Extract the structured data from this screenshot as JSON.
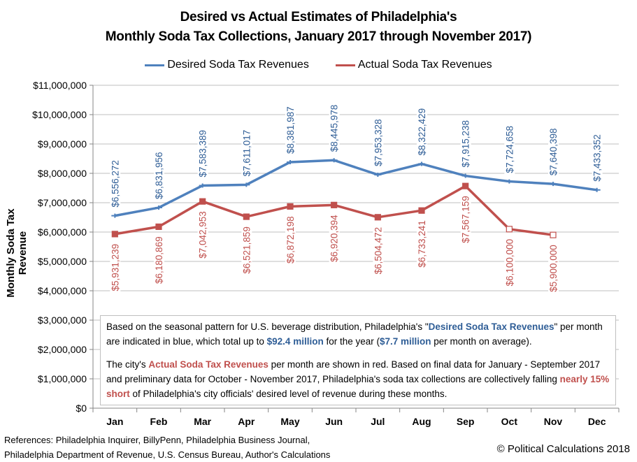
{
  "chart_data": {
    "type": "line",
    "title": [
      "Desired vs Actual Estimates of Philadelphia's",
      "Monthly Soda Tax Collections, January 2017 through November 2017)"
    ],
    "xlabel": "",
    "ylabel": "Monthly Soda Tax Revenue",
    "ylim": [
      0,
      11000000
    ],
    "yticks": [
      0,
      1000000,
      2000000,
      3000000,
      4000000,
      5000000,
      6000000,
      7000000,
      8000000,
      9000000,
      10000000,
      11000000
    ],
    "ytick_labels": [
      "$0",
      "$1,000,000",
      "$2,000,000",
      "$3,000,000",
      "$4,000,000",
      "$5,000,000",
      "$6,000,000",
      "$7,000,000",
      "$8,000,000",
      "$9,000,000",
      "$10,000,000",
      "$11,000,000"
    ],
    "categories": [
      "Jan",
      "Feb",
      "Mar",
      "Apr",
      "May",
      "Jun",
      "Jul",
      "Aug",
      "Sep",
      "Oct",
      "Nov",
      "Dec"
    ],
    "grid": true,
    "legend_position": "top-center",
    "series": [
      {
        "name": "Desired Soda Tax Revenues",
        "color": "#4f81bd",
        "label_color": "#2e5d96",
        "values": [
          6556272,
          6831956,
          7583389,
          7611017,
          8381987,
          8445978,
          7953328,
          8322429,
          7915238,
          7724658,
          7640398,
          7433352
        ],
        "labels": [
          "$6,556,272",
          "$6,831,956",
          "$7,583,389",
          "$7,611,017",
          "$8,381,987",
          "$8,445,978",
          "$7,953,328",
          "$8,322,429",
          "$7,915,238",
          "$7,724,658",
          "$7,640,398",
          "$7,433,352"
        ]
      },
      {
        "name": "Actual Soda Tax Revenues",
        "color": "#c0504d",
        "label_color": "#c0504d",
        "values": [
          5931239,
          6180869,
          7042953,
          6521859,
          6872198,
          6920394,
          6504472,
          6733241,
          7567159,
          6100000,
          5900000,
          null
        ],
        "labels": [
          "$5,931,239",
          "$6,180,869",
          "$7,042,953",
          "$6,521,859",
          "$6,872,198",
          "$6,920,394",
          "$6,504,472",
          "$6,733,241",
          "$7,567,159",
          "$6,100,000",
          "$5,900,000",
          null
        ],
        "preliminary": [
          false,
          false,
          false,
          false,
          false,
          false,
          false,
          false,
          false,
          true,
          true,
          null
        ]
      }
    ]
  },
  "annotation": {
    "p1": {
      "t1": "Based on the seasonal pattern for U.S. beverage distribution,  Philadelphia's \"",
      "b1": "Desired Soda Tax Revenues",
      "t2": "\" per month  are indicated in blue, which total up to ",
      "b2": "$92.4 million",
      "t3": " for the year (",
      "b3": "$7.7 million",
      "t4": " per month  on average)."
    },
    "p2": {
      "t1": "The city's ",
      "b1": "Actual Soda Tax Revenues",
      "t2": " per month  are shown in red.  Based on final data for January - September 2017 and preliminary data for October - November  2017, Philadelphia's soda tax collections are collectively falling ",
      "b2": "nearly 15% short",
      "t3": " of Philadelphia's city officials' desired level of revenue during  these months."
    }
  },
  "references": [
    "References: Philadelphia Inquirer, BillyPenn, Philadelphia Business Journal,",
    "Philadelphia Department of Revenue, U.S. Census Bureau, Author's Calculations"
  ],
  "copyright": "© Political Calculations 2018"
}
